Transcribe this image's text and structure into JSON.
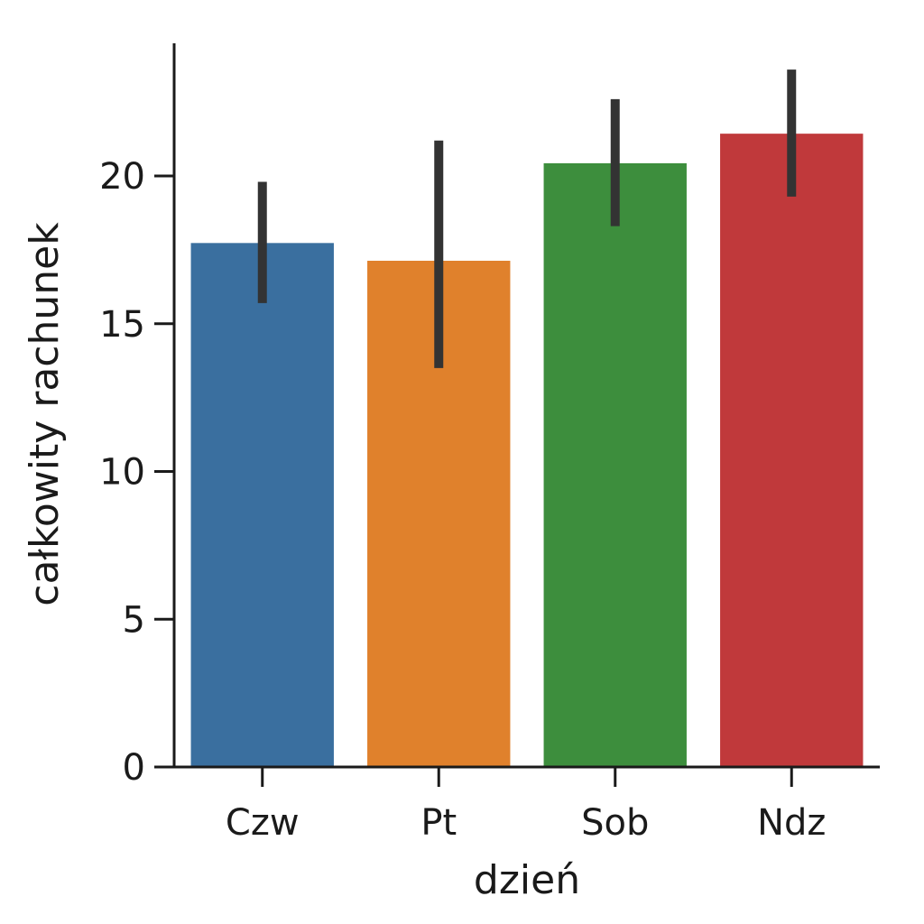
{
  "chart_data": {
    "type": "bar",
    "title": "",
    "xlabel": "dzień",
    "ylabel": "całkowity rachunek",
    "categories": [
      "Czw",
      "Pt",
      "Sob",
      "Ndz"
    ],
    "values": [
      17.7,
      17.1,
      20.4,
      21.4
    ],
    "error_low": [
      15.7,
      13.5,
      18.3,
      19.3
    ],
    "error_high": [
      19.8,
      21.2,
      22.6,
      23.6
    ],
    "colors": [
      "#3a6f9f",
      "#e0812c",
      "#3d8e3d",
      "#c0393b"
    ],
    "error_bar_color": "#333333",
    "yticks": [
      0,
      5,
      10,
      15,
      20
    ],
    "ylim": [
      0,
      25
    ],
    "grid": false,
    "legend": "none"
  }
}
